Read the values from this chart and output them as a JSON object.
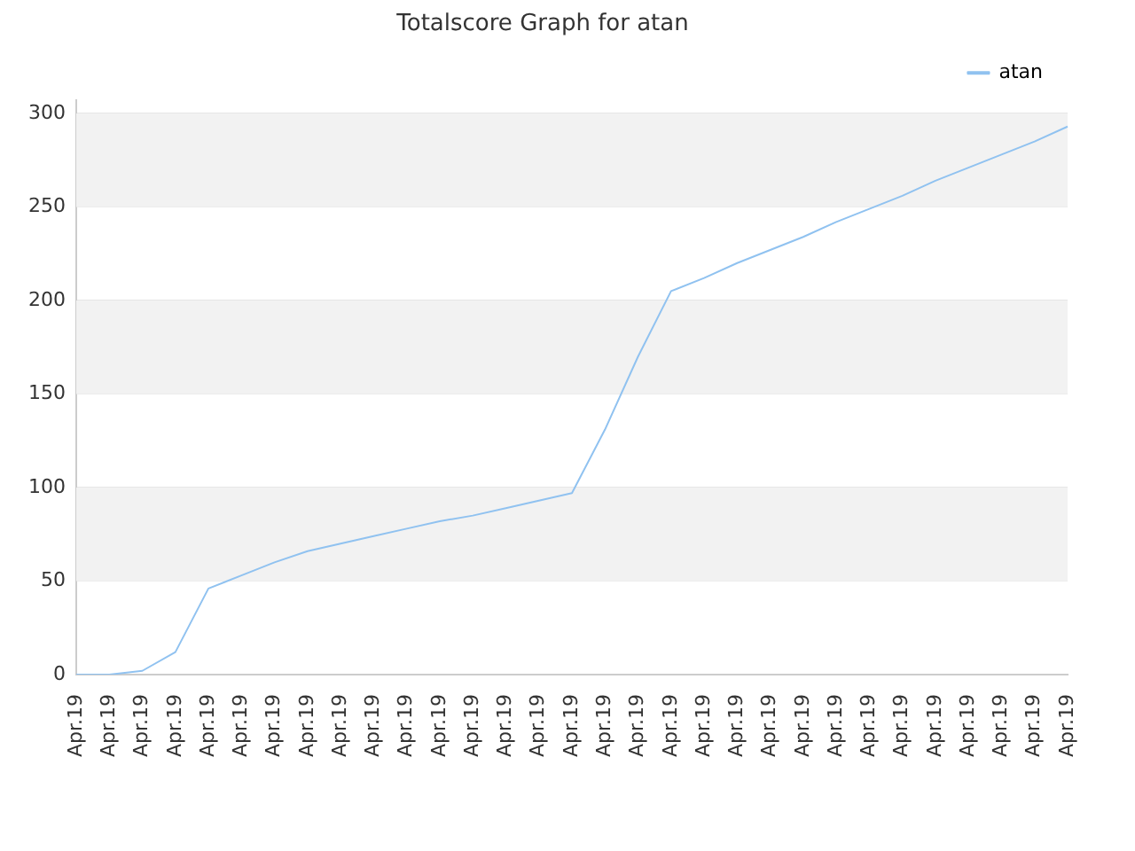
{
  "chart_data": {
    "type": "line",
    "title": "Totalscore Graph for atan",
    "categories": [
      "Apr.19",
      "Apr.19",
      "Apr.19",
      "Apr.19",
      "Apr.19",
      "Apr.19",
      "Apr.19",
      "Apr.19",
      "Apr.19",
      "Apr.19",
      "Apr.19",
      "Apr.19",
      "Apr.19",
      "Apr.19",
      "Apr.19",
      "Apr.19",
      "Apr.19",
      "Apr.19",
      "Apr.19",
      "Apr.19",
      "Apr.19",
      "Apr.19",
      "Apr.19",
      "Apr.19",
      "Apr.19",
      "Apr.19",
      "Apr.19",
      "Apr.19",
      "Apr.19",
      "Apr.19",
      "Apr.19"
    ],
    "series": [
      {
        "name": "atan",
        "color": "#90c2f0",
        "values": [
          0,
          0,
          2,
          12,
          46,
          53,
          60,
          66,
          70,
          74,
          78,
          82,
          85,
          89,
          93,
          97,
          131,
          170,
          205,
          212,
          220,
          227,
          234,
          242,
          249,
          256,
          264,
          271,
          278,
          285,
          293
        ]
      }
    ],
    "ylim": [
      0,
      307
    ],
    "yticks": [
      0,
      50,
      100,
      150,
      200,
      250,
      300
    ],
    "grid": "y",
    "legend": "top right",
    "marker": "none",
    "line_style": "solid"
  }
}
